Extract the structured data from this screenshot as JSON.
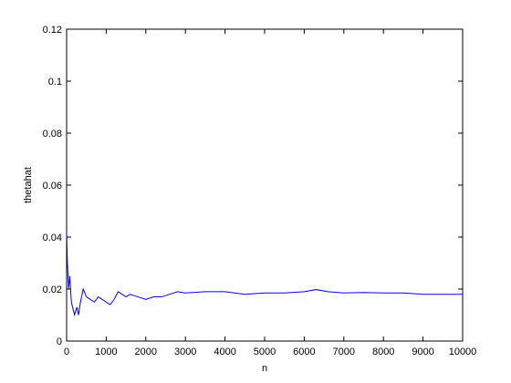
{
  "chart_data": {
    "type": "line",
    "xlabel": "n",
    "ylabel": "thetahat",
    "x": [
      1,
      20,
      50,
      80,
      120,
      200,
      260,
      300,
      350,
      420,
      500,
      600,
      700,
      800,
      900,
      1000,
      1100,
      1200,
      1300,
      1400,
      1500,
      1600,
      1800,
      2000,
      2200,
      2400,
      2600,
      2800,
      3000,
      3500,
      4000,
      4500,
      5000,
      5500,
      6000,
      6300,
      6600,
      7000,
      7500,
      8000,
      8500,
      9000,
      9500,
      10000
    ],
    "series": [
      {
        "color": "#0000ff",
        "values": [
          0.042,
          0.03,
          0.02,
          0.025,
          0.015,
          0.01,
          0.013,
          0.01,
          0.015,
          0.02,
          0.017,
          0.016,
          0.015,
          0.017,
          0.016,
          0.015,
          0.014,
          0.016,
          0.019,
          0.018,
          0.017,
          0.018,
          0.017,
          0.016,
          0.017,
          0.017,
          0.018,
          0.019,
          0.0185,
          0.019,
          0.019,
          0.018,
          0.0185,
          0.0185,
          0.019,
          0.0198,
          0.019,
          0.0185,
          0.0187,
          0.0185,
          0.0185,
          0.018,
          0.018,
          0.018
        ]
      }
    ],
    "xlim": [
      0,
      10000
    ],
    "xticks": [
      0,
      1000,
      2000,
      3000,
      4000,
      5000,
      6000,
      7000,
      8000,
      9000,
      10000
    ],
    "ylim": [
      0,
      0.12
    ],
    "yticks": [
      0,
      0.02,
      0.04,
      0.06,
      0.08,
      0.1,
      0.12
    ]
  }
}
